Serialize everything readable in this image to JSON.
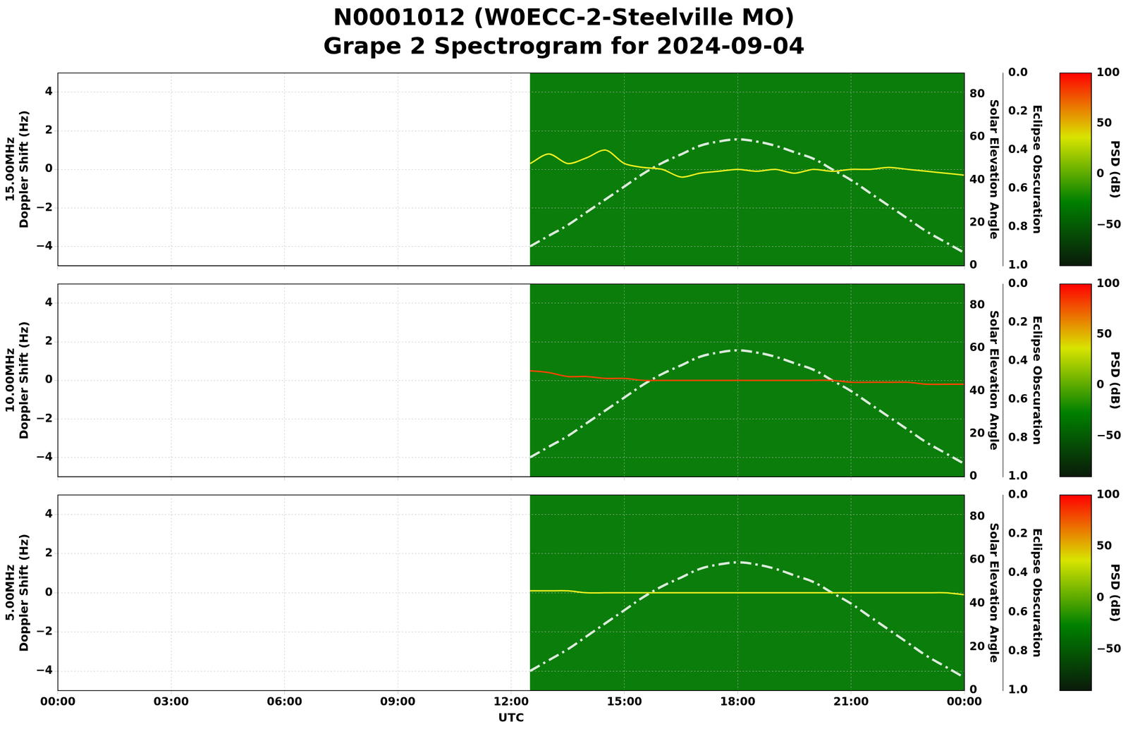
{
  "chart_data": {
    "type": "spectrogram",
    "title": "N0001012 (W0ECC-2-Steelville MO)",
    "subtitle": "Grape 2 Spectrogram for 2024-09-04",
    "xlabel": "UTC",
    "xlim": [
      0,
      24
    ],
    "xticks": [
      {
        "value": 0,
        "label": "00:00"
      },
      {
        "value": 3,
        "label": "03:00"
      },
      {
        "value": 6,
        "label": "06:00"
      },
      {
        "value": 9,
        "label": "09:00"
      },
      {
        "value": 12,
        "label": "12:00"
      },
      {
        "value": 15,
        "label": "15:00"
      },
      {
        "value": 18,
        "label": "18:00"
      },
      {
        "value": 21,
        "label": "21:00"
      },
      {
        "value": 24,
        "label": "00:00"
      }
    ],
    "x": [
      12.5,
      13,
      13.5,
      14,
      14.5,
      15,
      15.5,
      16,
      16.5,
      17,
      17.5,
      18,
      18.5,
      19,
      19.5,
      20,
      20.5,
      21,
      21.5,
      22,
      22.5,
      23,
      23.5,
      24
    ],
    "grid": true,
    "y2label": "Solar Elevation Angle",
    "y2lim": [
      0,
      90
    ],
    "y2ticks": [
      0,
      20,
      40,
      60,
      80
    ],
    "solar_elevation": {
      "values": [
        9,
        14,
        19,
        25,
        31,
        37,
        43,
        48,
        52,
        56,
        58,
        59,
        58,
        56,
        53,
        50,
        45,
        40,
        34,
        28,
        22,
        16,
        11,
        6
      ],
      "color": "#dcebdc",
      "line_style": "dashdot"
    },
    "y3label": "Eclipse Obscuration",
    "y3lim": [
      1.0,
      0.0
    ],
    "y3ticks": [
      {
        "value": 0,
        "label": "0.0"
      },
      0.2,
      0.4,
      0.6,
      0.8,
      {
        "value": 1,
        "label": "1.0"
      }
    ],
    "colorbar": {
      "label": "PSD (dB)",
      "range": [
        -90,
        100
      ],
      "ticks": [
        {
          "value": -50,
          "label": "−50"
        },
        0,
        50,
        100
      ],
      "colors": [
        "#0a1a0a",
        "#008000",
        "#d8e400",
        "#ff0000"
      ]
    },
    "panels": [
      {
        "frequency": "15.00MHz",
        "ylabel": "Doppler Shift (Hz)",
        "ylim": [
          -5,
          5
        ],
        "yticks": [
          {
            "value": -4,
            "label": "−4"
          },
          {
            "value": -2,
            "label": "−2"
          },
          0,
          2,
          4
        ],
        "series": [
          {
            "color": "#f0f020",
            "values": [
              0.3,
              0.8,
              0.3,
              0.6,
              1.0,
              0.3,
              0.1,
              0.0,
              -0.4,
              -0.2,
              -0.1,
              0.0,
              -0.1,
              0.0,
              -0.2,
              0.0,
              -0.1,
              0.0,
              0.0,
              0.1,
              0.0,
              -0.1,
              -0.2,
              -0.3
            ]
          }
        ]
      },
      {
        "frequency": "10.00MHz",
        "ylabel": "Doppler Shift (Hz)",
        "ylim": [
          -5,
          5
        ],
        "yticks": [
          {
            "value": -4,
            "label": "−4"
          },
          {
            "value": -2,
            "label": "−2"
          },
          0,
          2,
          4
        ],
        "series": [
          {
            "color": "#ff4500",
            "values": [
              0.5,
              0.4,
              0.2,
              0.2,
              0.1,
              0.1,
              0.0,
              0.0,
              0.0,
              0.0,
              0.0,
              0.0,
              0.0,
              0.0,
              0.0,
              0.0,
              0.0,
              -0.1,
              -0.1,
              -0.1,
              -0.1,
              -0.2,
              -0.2,
              -0.2
            ]
          }
        ]
      },
      {
        "frequency": "5.00MHz",
        "ylabel": "Doppler Shift (Hz)",
        "ylim": [
          -5,
          5
        ],
        "yticks": [
          {
            "value": -4,
            "label": "−4"
          },
          {
            "value": -2,
            "label": "−2"
          },
          0,
          2,
          4
        ],
        "series": [
          {
            "color": "#f0f020",
            "values": [
              0.1,
              0.1,
              0.1,
              0.0,
              0.0,
              0.0,
              0.0,
              0.0,
              0.0,
              0.0,
              0.0,
              0.0,
              0.0,
              0.0,
              0.0,
              0.0,
              0.0,
              0.0,
              0.0,
              0.0,
              0.0,
              0.0,
              0.0,
              -0.1
            ]
          }
        ]
      }
    ]
  }
}
